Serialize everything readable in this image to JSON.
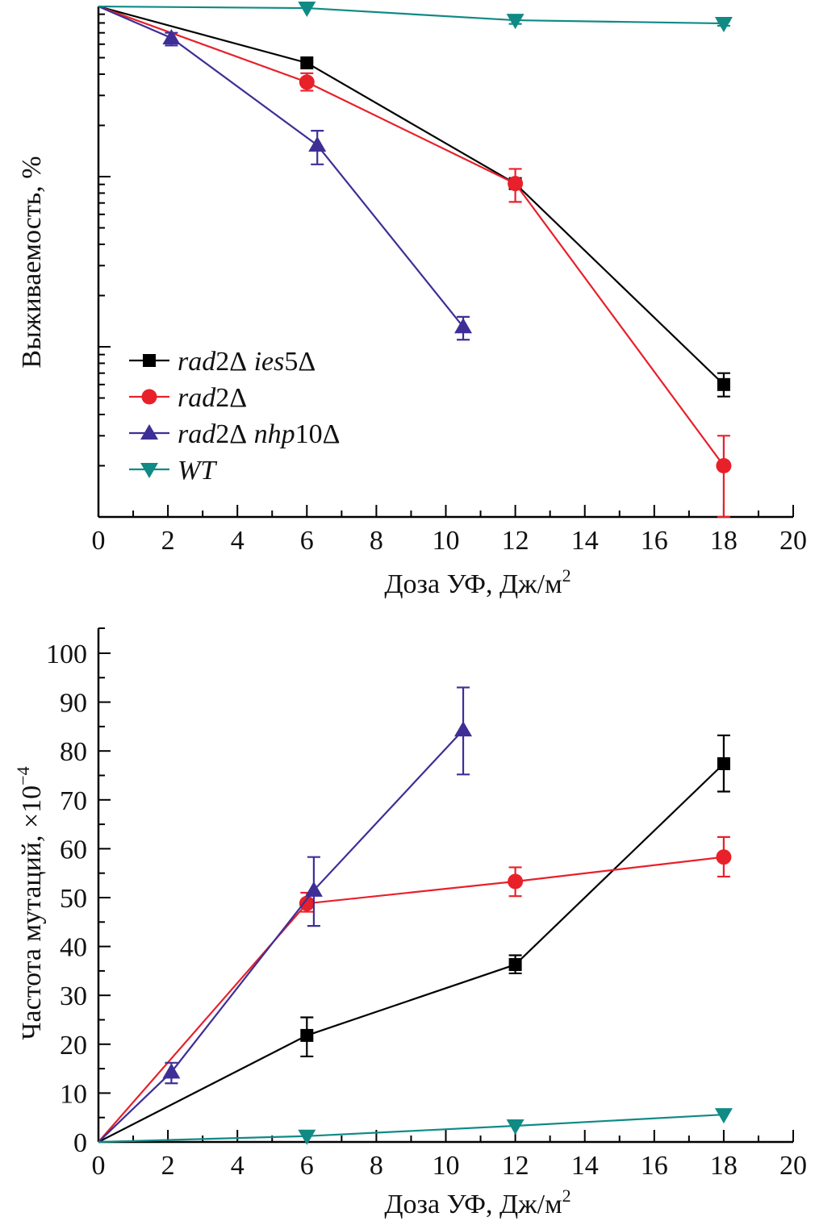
{
  "chart_data": [
    {
      "id": "survival",
      "type": "line",
      "title": "",
      "xlabel": "Доза УФ, Дж/м",
      "xlabel_superscript": "2",
      "ylabel": "Выживаемость, %",
      "y_scale": "log",
      "xlim": [
        0,
        20
      ],
      "ylim": [
        0.1,
        100
      ],
      "x_ticks": [
        0,
        2,
        4,
        6,
        8,
        10,
        12,
        14,
        16,
        18,
        20
      ],
      "x_tick_labels": [
        "0",
        "2",
        "4",
        "6",
        "8",
        "10",
        "12",
        "14",
        "16",
        "18",
        "20"
      ],
      "y_tick_labels": [],
      "grid": false,
      "legend_position": "bottom-left",
      "series": [
        {
          "name": "rad2Δ ies5Δ",
          "color": "#000000",
          "marker": "square",
          "points": [
            {
              "x": 0,
              "y": 100
            },
            {
              "x": 6,
              "y": 46.6
            },
            {
              "x": 12,
              "y": 9.1
            },
            {
              "x": 18,
              "y": 0.6,
              "err_low": 0.51,
              "err_high": 0.7
            }
          ]
        },
        {
          "name": "rad2Δ",
          "color": "#e8202a",
          "marker": "circle",
          "points": [
            {
              "x": 0,
              "y": 100
            },
            {
              "x": 6,
              "y": 35.9,
              "err_low": 32.0,
              "err_high": 40.5
            },
            {
              "x": 12,
              "y": 9.1,
              "err_low": 7.1,
              "err_high": 11.1
            },
            {
              "x": 18,
              "y": 0.2,
              "err_low": 0.1,
              "err_high": 0.3
            }
          ]
        },
        {
          "name": "rad2Δ nhp10Δ",
          "color": "#3d2f96",
          "marker": "triangle-up",
          "points": [
            {
              "x": 0,
              "y": 100
            },
            {
              "x": 2.1,
              "y": 65.3,
              "err_low": 59,
              "err_high": 70
            },
            {
              "x": 6.3,
              "y": 15.3,
              "err_low": 11.8,
              "err_high": 18.6
            },
            {
              "x": 10.5,
              "y": 1.31,
              "err_low": 1.1,
              "err_high": 1.5
            }
          ]
        },
        {
          "name": "WT",
          "color": "#0f8a85",
          "marker": "triangle-down",
          "points": [
            {
              "x": 0,
              "y": 100
            },
            {
              "x": 6,
              "y": 97.8
            },
            {
              "x": 12,
              "y": 83,
              "err_low": 79,
              "err_high": 88
            },
            {
              "x": 18,
              "y": 79.5,
              "err_low": 77,
              "err_high": 82
            }
          ]
        }
      ]
    },
    {
      "id": "mutation",
      "type": "line",
      "title": "",
      "xlabel": "Доза УФ, Дж/м",
      "xlabel_superscript": "2",
      "ylabel": "Частота мутаций, ×10",
      "ylabel_superscript": "−4",
      "y_scale": "linear",
      "xlim": [
        0,
        20
      ],
      "ylim": [
        0,
        105
      ],
      "x_ticks": [
        0,
        2,
        4,
        6,
        8,
        10,
        12,
        14,
        16,
        18,
        20
      ],
      "x_tick_labels": [
        "0",
        "2",
        "4",
        "6",
        "8",
        "10",
        "12",
        "14",
        "16",
        "18",
        "20"
      ],
      "y_ticks": [
        0,
        10,
        20,
        30,
        40,
        50,
        60,
        70,
        80,
        90,
        100
      ],
      "y_tick_labels": [
        "0",
        "10",
        "20",
        "30",
        "40",
        "50",
        "60",
        "70",
        "80",
        "90",
        "100"
      ],
      "grid": false,
      "legend_position": "none",
      "series": [
        {
          "name": "rad2Δ ies5Δ",
          "color": "#000000",
          "marker": "square",
          "points": [
            {
              "x": 0,
              "y": 0
            },
            {
              "x": 6,
              "y": 21.8,
              "err_low": 17.5,
              "err_high": 25.5
            },
            {
              "x": 12,
              "y": 36.3,
              "err_low": 34.5,
              "err_high": 38.2
            },
            {
              "x": 18,
              "y": 77.4,
              "err_low": 71.7,
              "err_high": 83.2
            }
          ]
        },
        {
          "name": "rad2Δ",
          "color": "#e8202a",
          "marker": "circle",
          "points": [
            {
              "x": 0,
              "y": 0
            },
            {
              "x": 6,
              "y": 48.8,
              "err_low": 47.1,
              "err_high": 51.0
            },
            {
              "x": 12,
              "y": 53.3,
              "err_low": 50.3,
              "err_high": 56.2
            },
            {
              "x": 18,
              "y": 58.3,
              "err_low": 54.3,
              "err_high": 62.4
            }
          ]
        },
        {
          "name": "rad2Δ nhp10Δ",
          "color": "#3d2f96",
          "marker": "triangle-up",
          "points": [
            {
              "x": 0,
              "y": 0
            },
            {
              "x": 2.1,
              "y": 14.3,
              "err_low": 12.0,
              "err_high": 16.2
            },
            {
              "x": 6.2,
              "y": 51.5,
              "err_low": 44.2,
              "err_high": 58.3
            },
            {
              "x": 10.5,
              "y": 84.3,
              "err_low": 75.2,
              "err_high": 93.0
            }
          ]
        },
        {
          "name": "WT",
          "color": "#0f8a85",
          "marker": "triangle-down",
          "points": [
            {
              "x": 0,
              "y": 0
            },
            {
              "x": 6,
              "y": 1.2
            },
            {
              "x": 12,
              "y": 3.3
            },
            {
              "x": 18,
              "y": 5.6
            }
          ]
        }
      ]
    }
  ],
  "legend": {
    "entries": [
      {
        "prefix": "rad",
        "num": "2Δ",
        "mid": " ies",
        "num2": "5Δ"
      },
      {
        "prefix": "rad",
        "num": "2Δ",
        "mid": "",
        "num2": ""
      },
      {
        "prefix": "rad",
        "num": "2Δ",
        "mid": " nhp",
        "num2": "10Δ"
      },
      {
        "prefix": "WT",
        "num": "",
        "mid": "",
        "num2": ""
      }
    ]
  }
}
